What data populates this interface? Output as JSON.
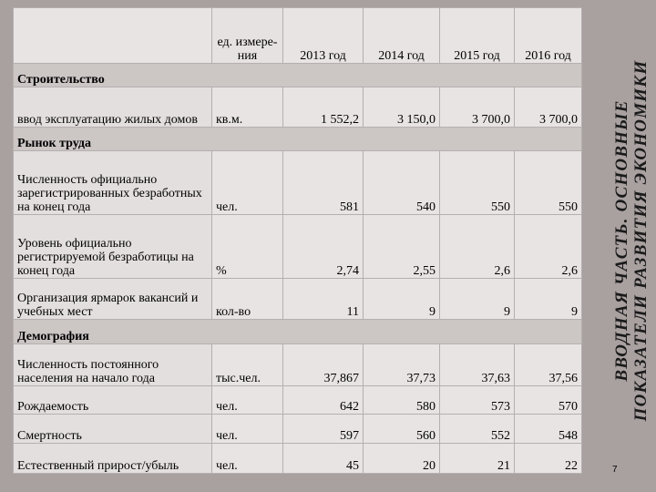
{
  "header": {
    "unit_label": "ед. измере-ния",
    "years": [
      "2013 год",
      "2014 год",
      "2015 год",
      "2016 год"
    ]
  },
  "sections": {
    "construction": "Строительство",
    "labor": "Рынок труда",
    "demography": "Демография"
  },
  "rows": [
    {
      "label": "ввод эксплуатацию жилых домов",
      "unit": "кв.м.",
      "values": [
        "1 552,2",
        "3 150,0",
        "3 700,0",
        "3 700,0"
      ]
    },
    {
      "label": "Численность официально зарегистрированных безработных на конец года",
      "unit": "чел.",
      "values": [
        "581",
        "540",
        "550",
        "550"
      ]
    },
    {
      "label": "Уровень официально регистрируемой безработицы на конец года",
      "unit": "%",
      "values": [
        "2,74",
        "2,55",
        "2,6",
        "2,6"
      ]
    },
    {
      "label": "Организация ярмарок вакансий и учебных мест",
      "unit": "кол-во",
      "values": [
        "11",
        "9",
        "9",
        "9"
      ]
    },
    {
      "label": "Численность постоянного населения на начало года",
      "unit": "тыс.чел.",
      "values": [
        "37,867",
        "37,73",
        "37,63",
        "37,56"
      ]
    },
    {
      "label": "Рождаемость",
      "unit": "чел.",
      "values": [
        "642",
        "580",
        "573",
        "570"
      ]
    },
    {
      "label": "Смертность",
      "unit": "чел.",
      "values": [
        "597",
        "560",
        "552",
        "548"
      ]
    },
    {
      "label": "Естественный прирост/убыль",
      "unit": "чел.",
      "values": [
        "45",
        "20",
        "21",
        "22"
      ]
    }
  ],
  "side_title": {
    "line1": "ВВОДНАЯ ЧАСТЬ. ОСНОВНЫЕ",
    "line2": "ПОКАЗАТЕЛИ РАЗВИТИЯ ЭКОНОМИКИ"
  },
  "page_number": "7"
}
